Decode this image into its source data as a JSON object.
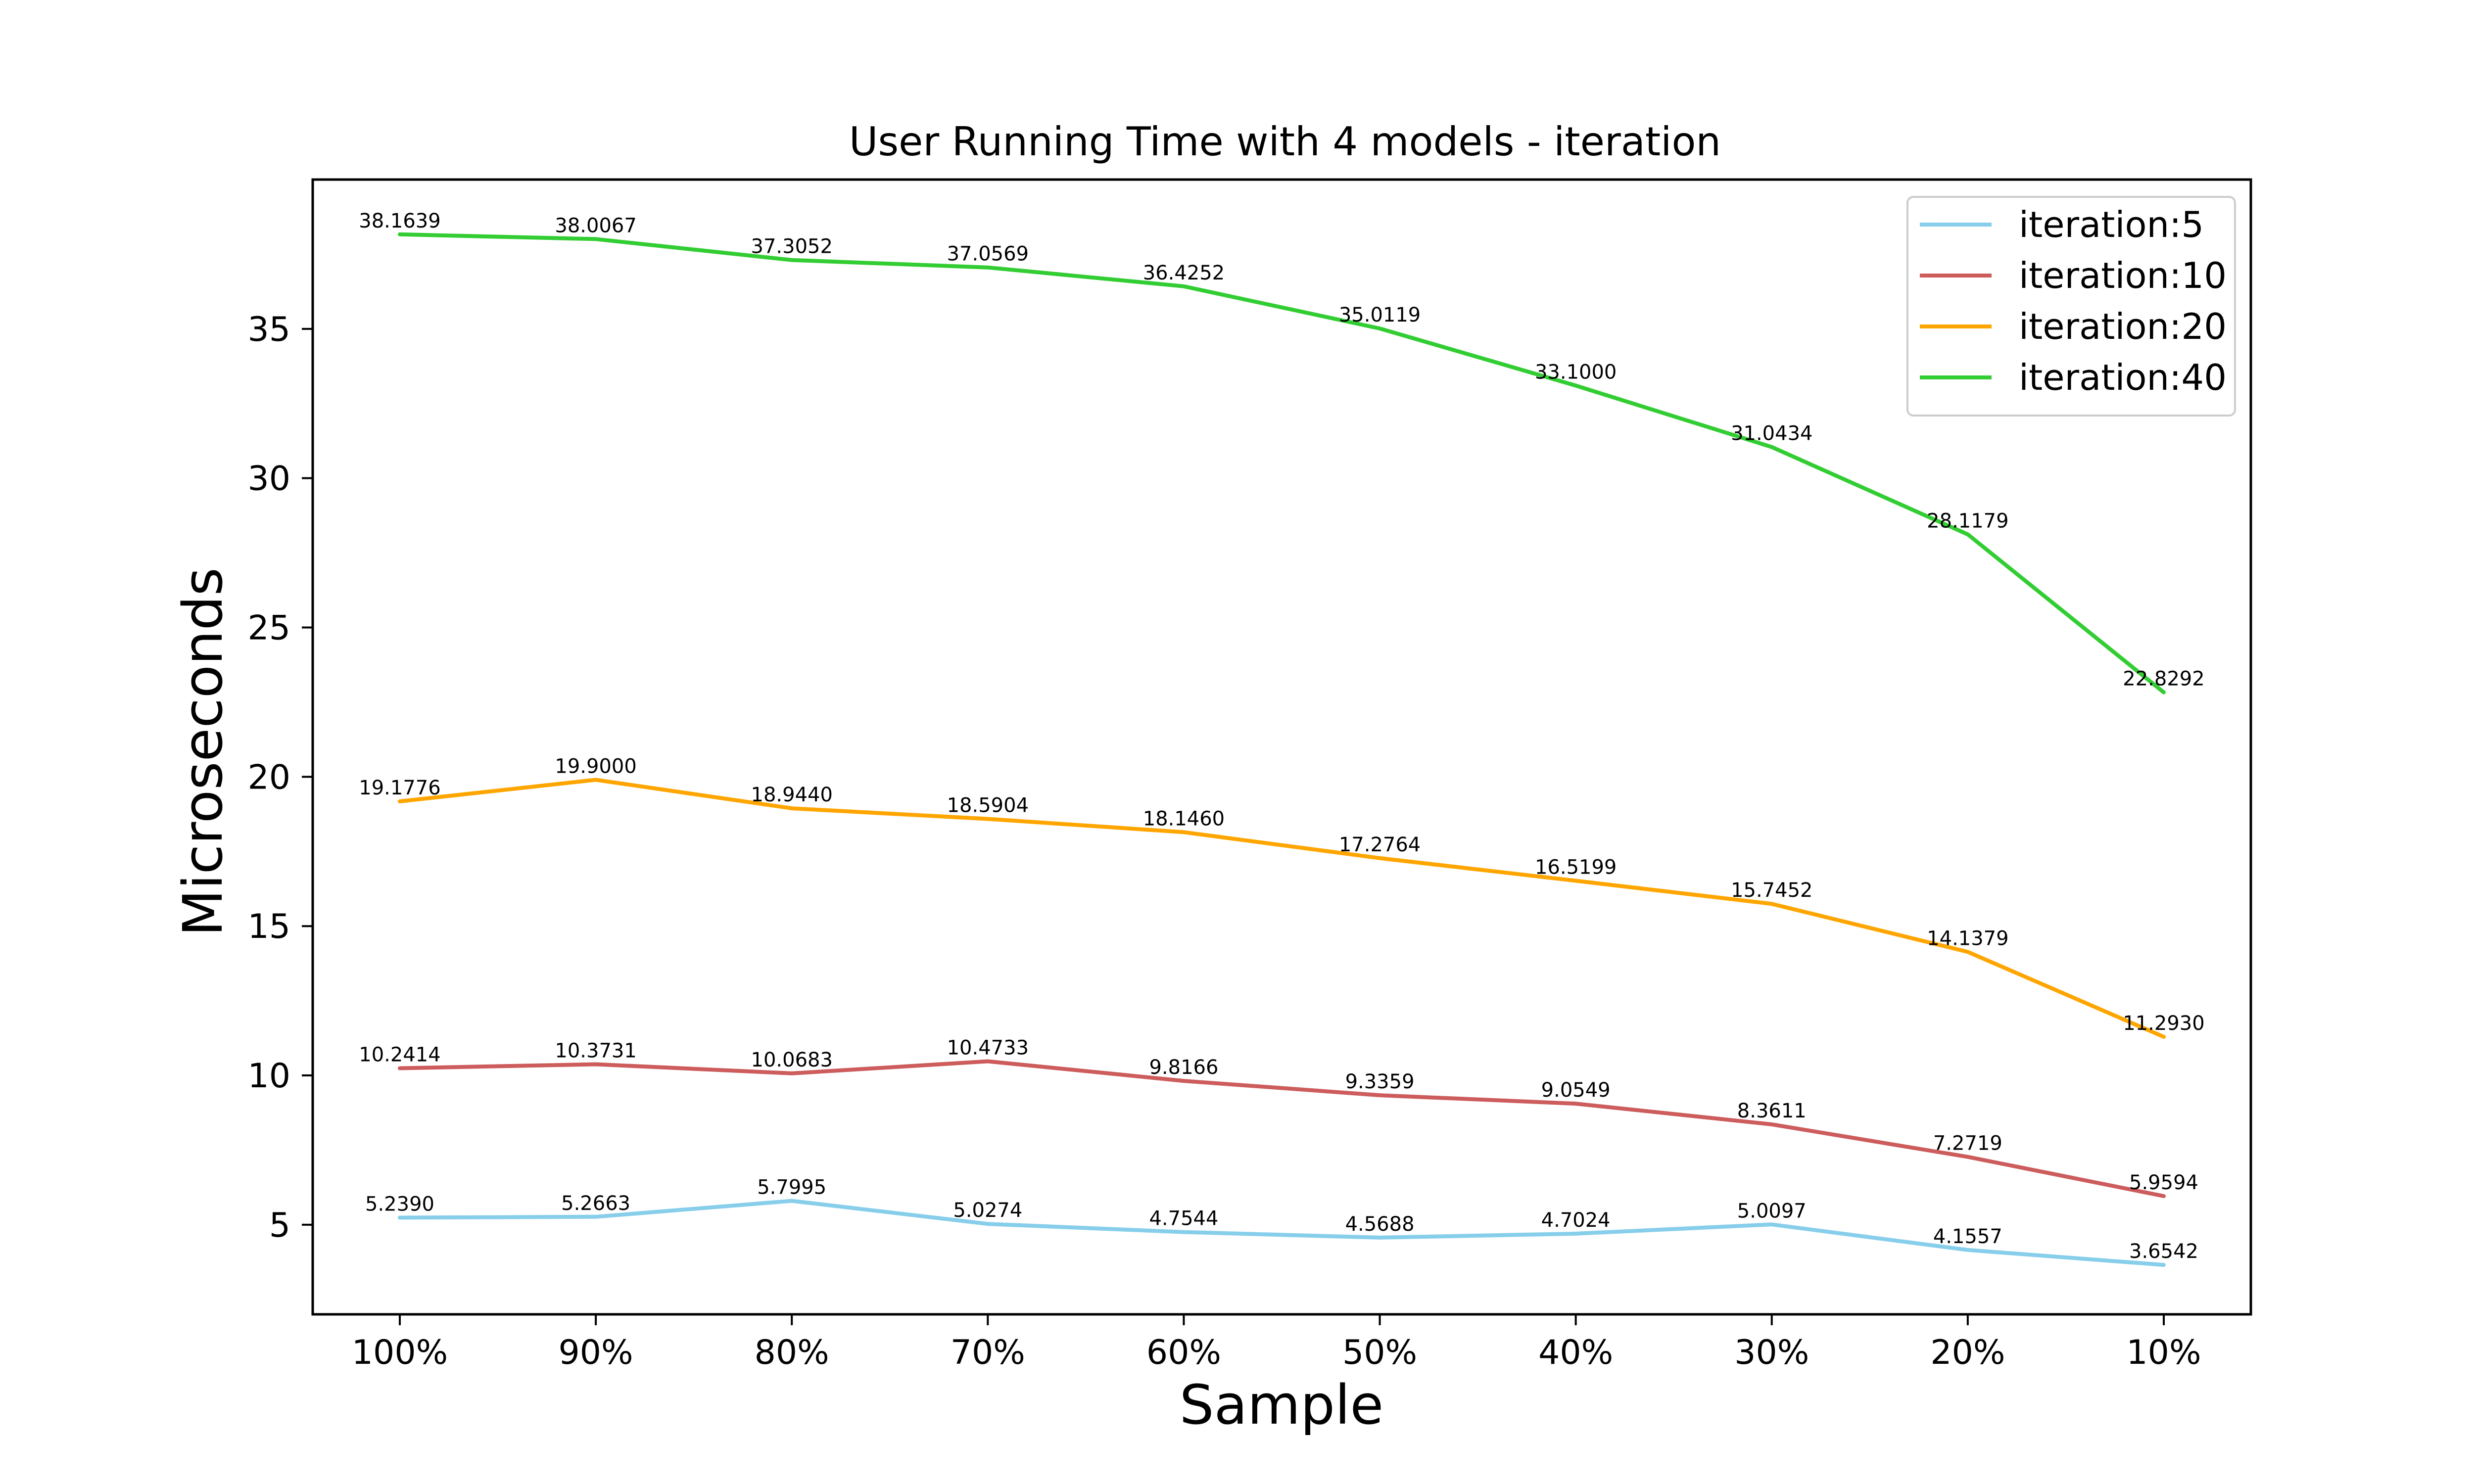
{
  "chart_data": {
    "type": "line",
    "title": "User Running Time with 4 models - iteration",
    "xlabel": "Sample",
    "ylabel": "Microseconds",
    "categories": [
      "100%",
      "90%",
      "80%",
      "70%",
      "60%",
      "50%",
      "40%",
      "30%",
      "20%",
      "10%"
    ],
    "ylim": [
      2.0,
      40.0
    ],
    "yticks": [
      5,
      10,
      15,
      20,
      25,
      30,
      35
    ],
    "grid": false,
    "legend_position": "top-right",
    "series": [
      {
        "name": "iteration:5",
        "color": "#87CEEB",
        "values": [
          5.239,
          5.2663,
          5.7995,
          5.0274,
          4.7544,
          4.5688,
          4.7024,
          5.0097,
          4.1557,
          3.6542
        ],
        "labels": [
          "5.2390",
          "5.2663",
          "5.7995",
          "5.0274",
          "4.7544",
          "4.5688",
          "4.7024",
          "5.0097",
          "4.1557",
          "3.6542"
        ]
      },
      {
        "name": "iteration:10",
        "color": "#CD5C5C",
        "values": [
          10.2414,
          10.3731,
          10.0683,
          10.4733,
          9.8166,
          9.3359,
          9.0549,
          8.3611,
          7.2719,
          5.9594
        ],
        "labels": [
          "10.2414",
          "10.3731",
          "10.0683",
          "10.4733",
          "9.8166",
          "9.3359",
          "9.0549",
          "8.3611",
          "7.2719",
          "5.9594"
        ]
      },
      {
        "name": "iteration:20",
        "color": "#FFA500",
        "values": [
          19.1776,
          19.9,
          18.944,
          18.5904,
          18.146,
          17.2764,
          16.5199,
          15.7452,
          14.1379,
          11.293
        ],
        "labels": [
          "19.1776",
          "19.9000",
          "18.9440",
          "18.5904",
          "18.1460",
          "17.2764",
          "16.5199",
          "15.7452",
          "14.1379",
          "11.2930"
        ]
      },
      {
        "name": "iteration:40",
        "color": "#32CD32",
        "values": [
          38.1639,
          38.0067,
          37.3052,
          37.0569,
          36.4252,
          35.0119,
          33.1,
          31.0434,
          28.1179,
          22.8292
        ],
        "labels": [
          "38.1639",
          "38.0067",
          "37.3052",
          "37.0569",
          "36.4252",
          "35.0119",
          "33.1000",
          "31.0434",
          "28.1179",
          "22.8292"
        ]
      }
    ]
  }
}
